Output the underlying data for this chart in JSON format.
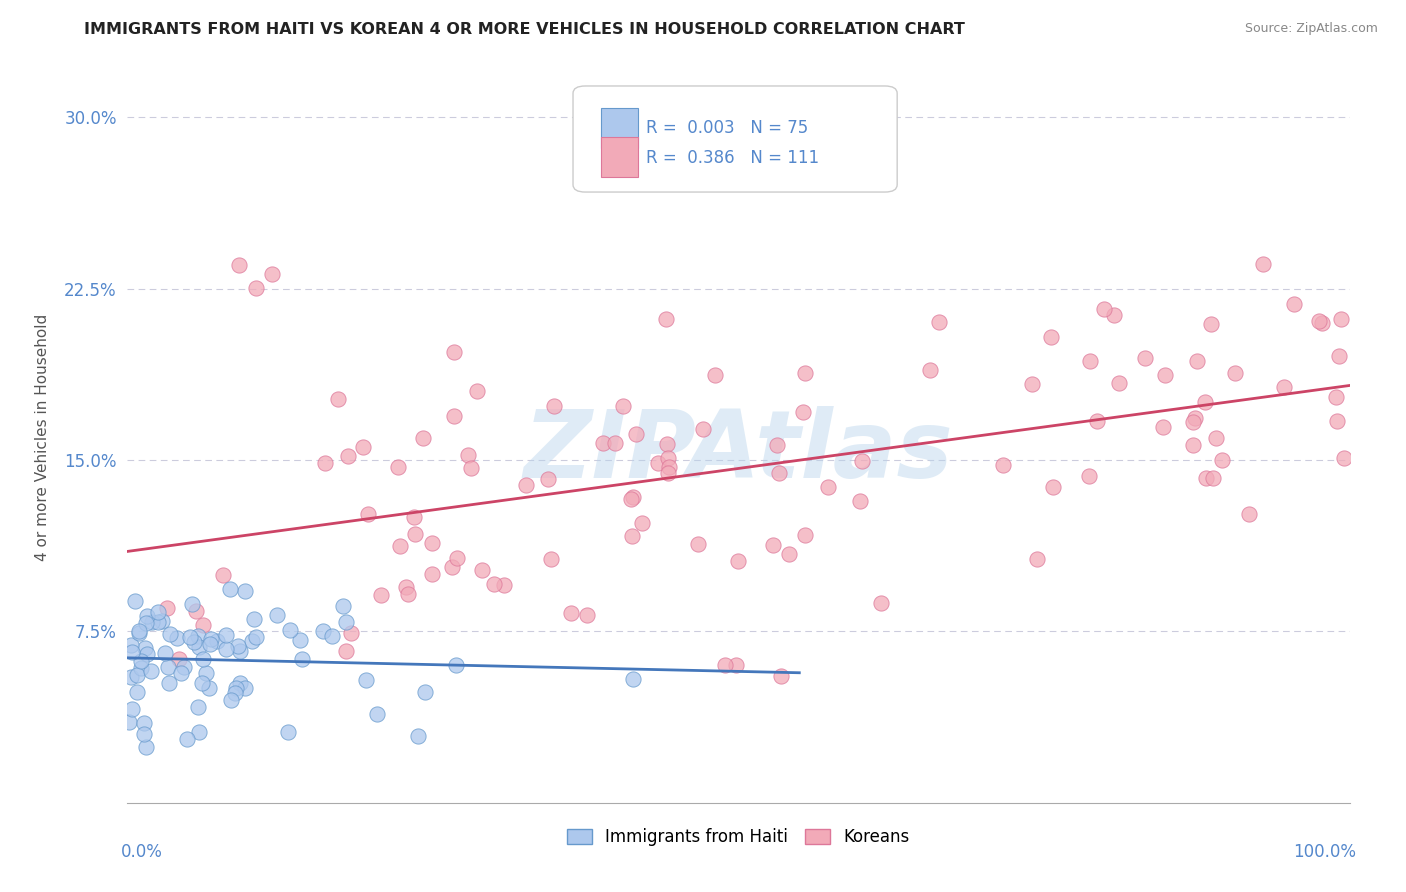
{
  "title": "IMMIGRANTS FROM HAITI VS KOREAN 4 OR MORE VEHICLES IN HOUSEHOLD CORRELATION CHART",
  "source": "Source: ZipAtlas.com",
  "ylabel": "4 or more Vehicles in Household",
  "haiti_color": "#adc8ed",
  "korean_color": "#f2aab8",
  "haiti_edge": "#6699cc",
  "korean_edge": "#dd7799",
  "haiti_line_color": "#4477bb",
  "korean_line_color": "#cc4466",
  "watermark": "ZIPAtlas",
  "watermark_color": "#b8d4ec",
  "tick_color": "#5588cc",
  "ylabel_color": "#555555",
  "title_color": "#222222",
  "source_color": "#888888",
  "grid_color": "#ccccdd",
  "box_edge_color": "#cccccc",
  "haiti_seed": 101,
  "korean_seed": 202
}
